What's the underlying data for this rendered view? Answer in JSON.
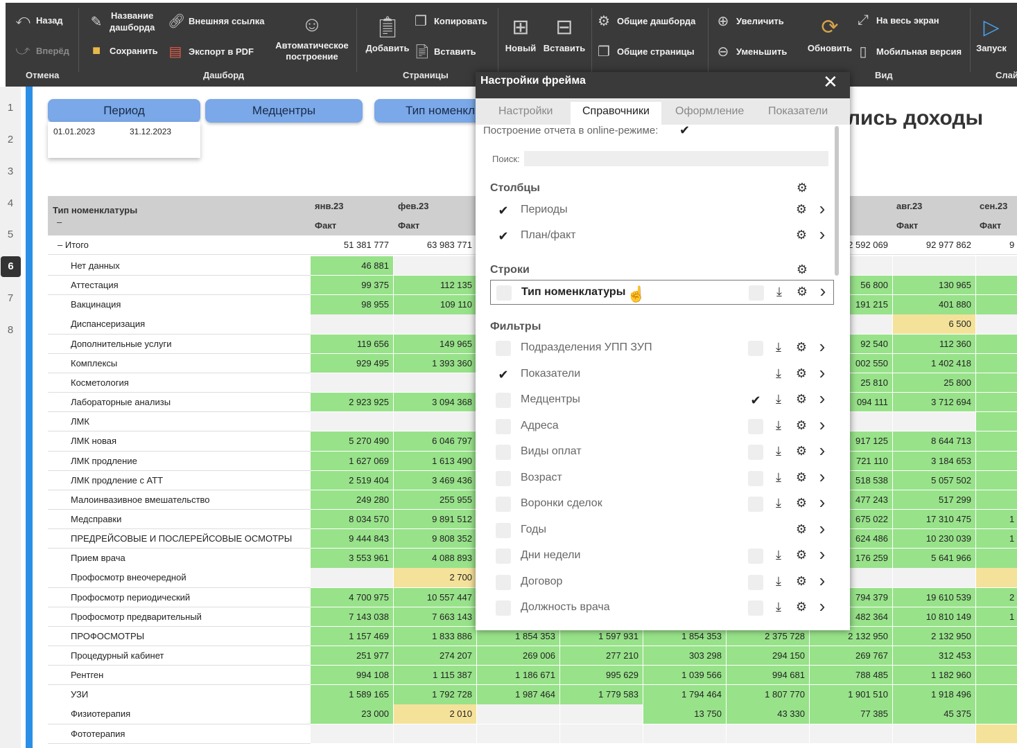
{
  "ribbon": {
    "back": "Назад",
    "forward": "Вперёд",
    "group_undo": "Отмена",
    "dash_name": "Название\nдашборда",
    "external_link": "Внешняя ссылка",
    "save": "Сохранить",
    "export_pdf": "Экспорт в PDF",
    "auto_build": "Автоматическое\nпостроение",
    "group_dashboard": "Дашборд",
    "add": "Добавить",
    "copy": "Копировать",
    "paste_page": "Вставить",
    "group_pages": "Страницы",
    "new": "Новый",
    "paste_widget": "Вставить",
    "shared_dash": "Общие дашборда",
    "shared_pages": "Общие страницы",
    "zoom_in": "Увеличить",
    "zoom_out": "Уменьшить",
    "refresh": "Обновить",
    "fullscreen": "На весь экран",
    "mobile": "Мобильная версия",
    "group_view": "Вид",
    "launch": "Запуск",
    "group_slide": "Слай"
  },
  "ruler": [
    "1",
    "2",
    "3",
    "4",
    "5",
    "6",
    "7",
    "8"
  ],
  "slicers": {
    "period": "Период",
    "centers": "Медцентры",
    "type": "Тип номенкл",
    "date_from": "01.01.2023",
    "date_to": "31.12.2023"
  },
  "report_title": "лись доходы",
  "table": {
    "col_header": "Тип номенклатуры",
    "col_sub": "–",
    "months": [
      "янв.23",
      "фев.23",
      "авг.23",
      "сен.23"
    ],
    "fact": "Факт",
    "rows": [
      {
        "label": "Итого",
        "total": true,
        "v": [
          "51 381 777",
          "63 983 771",
          "",
          "",
          "",
          "",
          "2 592 069",
          "92 977 862",
          "9"
        ],
        "c": [
          "w",
          "w",
          "w",
          "w",
          "w",
          "w",
          "w",
          "w",
          "w"
        ]
      },
      {
        "label": "Нет данных",
        "v": [
          "46 881",
          "",
          "",
          "",
          "",
          "",
          "",
          "",
          ""
        ],
        "c": [
          "g",
          "e",
          "e",
          "e",
          "e",
          "e",
          "e",
          "e",
          "e"
        ]
      },
      {
        "label": "Аттестация",
        "v": [
          "99 375",
          "112 135",
          "",
          "",
          "",
          "",
          "56 800",
          "130 965",
          ""
        ],
        "c": [
          "g",
          "g",
          "g",
          "g",
          "g",
          "g",
          "g",
          "g",
          "g"
        ]
      },
      {
        "label": "Вакцинация",
        "v": [
          "98 955",
          "109 110",
          "",
          "",
          "",
          "",
          "191 215",
          "401 880",
          ""
        ],
        "c": [
          "g",
          "g",
          "g",
          "g",
          "g",
          "g",
          "g",
          "g",
          "g"
        ]
      },
      {
        "label": "Диспансеризация",
        "v": [
          "",
          "",
          "",
          "",
          "",
          "",
          "",
          "6 500",
          ""
        ],
        "c": [
          "e",
          "e",
          "e",
          "e",
          "e",
          "e",
          "e",
          "y",
          "e"
        ]
      },
      {
        "label": "Дополнительные услуги",
        "v": [
          "119 656",
          "149 965",
          "",
          "",
          "",
          "",
          "92 540",
          "112 360",
          ""
        ],
        "c": [
          "g",
          "g",
          "g",
          "g",
          "g",
          "g",
          "g",
          "g",
          "g"
        ]
      },
      {
        "label": "Комплексы",
        "v": [
          "929 495",
          "1 393 360",
          "",
          "",
          "",
          "",
          "002 550",
          "1 402 418",
          ""
        ],
        "c": [
          "g",
          "g",
          "g",
          "g",
          "g",
          "g",
          "g",
          "g",
          "g"
        ]
      },
      {
        "label": "Косметология",
        "v": [
          "",
          "",
          "",
          "",
          "",
          "",
          "25 810",
          "25 800",
          ""
        ],
        "c": [
          "e",
          "e",
          "e",
          "e",
          "e",
          "e",
          "g",
          "g",
          "g"
        ]
      },
      {
        "label": "Лабораторные анализы",
        "v": [
          "2 923 925",
          "3 094 368",
          "",
          "",
          "",
          "",
          "094 111",
          "3 712 694",
          ""
        ],
        "c": [
          "g",
          "g",
          "g",
          "g",
          "g",
          "g",
          "g",
          "g",
          "g"
        ]
      },
      {
        "label": "ЛМК",
        "v": [
          "",
          "",
          "",
          "",
          "",
          "",
          "",
          "",
          ""
        ],
        "c": [
          "e",
          "e",
          "e",
          "e",
          "e",
          "e",
          "e",
          "e",
          "g"
        ]
      },
      {
        "label": "ЛМК новая",
        "v": [
          "5 270 490",
          "6 046 797",
          "",
          "",
          "",
          "",
          "917 125",
          "8 644 713",
          ""
        ],
        "c": [
          "g",
          "g",
          "g",
          "g",
          "g",
          "g",
          "g",
          "g",
          "g"
        ]
      },
      {
        "label": "ЛМК продление",
        "v": [
          "1 627 069",
          "1 613 490",
          "",
          "",
          "",
          "",
          "721 110",
          "3 184 653",
          ""
        ],
        "c": [
          "g",
          "g",
          "g",
          "g",
          "g",
          "g",
          "g",
          "g",
          "g"
        ]
      },
      {
        "label": "ЛМК продление с АТТ",
        "v": [
          "2 519 404",
          "3 469 436",
          "",
          "",
          "",
          "",
          "518 538",
          "5 057 502",
          ""
        ],
        "c": [
          "g",
          "g",
          "g",
          "g",
          "g",
          "g",
          "g",
          "g",
          "g"
        ]
      },
      {
        "label": "Малоинвазивное вмешательство",
        "v": [
          "249 280",
          "255 955",
          "",
          "",
          "",
          "",
          "477 243",
          "517 299",
          ""
        ],
        "c": [
          "g",
          "g",
          "g",
          "g",
          "g",
          "g",
          "g",
          "g",
          "g"
        ]
      },
      {
        "label": "Медсправки",
        "v": [
          "8 034 570",
          "9 891 512",
          "",
          "",
          "",
          "",
          "675 022",
          "17 310 475",
          "1"
        ],
        "c": [
          "g",
          "g",
          "g",
          "g",
          "g",
          "g",
          "g",
          "g",
          "g"
        ]
      },
      {
        "label": "ПРЕДРЕЙСОВЫЕ И ПОСЛЕРЕЙСОВЫЕ ОСМОТРЫ",
        "v": [
          "9 444 843",
          "9 808 352",
          "",
          "",
          "",
          "",
          "624 486",
          "10 230 039",
          "1"
        ],
        "c": [
          "g",
          "g",
          "g",
          "g",
          "g",
          "g",
          "g",
          "g",
          "g"
        ]
      },
      {
        "label": "Прием врача",
        "v": [
          "3 553 961",
          "4 088 893",
          "",
          "",
          "",
          "",
          "176 259",
          "5 641 966",
          ""
        ],
        "c": [
          "g",
          "g",
          "g",
          "g",
          "g",
          "g",
          "g",
          "g",
          "g"
        ]
      },
      {
        "label": "Профосмотр внеочередной",
        "v": [
          "",
          "2 700",
          "",
          "",
          "",
          "",
          "",
          "",
          ""
        ],
        "c": [
          "e",
          "y",
          "e",
          "e",
          "e",
          "e",
          "e",
          "e",
          "y"
        ]
      },
      {
        "label": "Профосмотр периодический",
        "v": [
          "4 700 975",
          "10 557 447",
          "",
          "",
          "",
          "",
          "794 379",
          "19 610 539",
          "2"
        ],
        "c": [
          "g",
          "g",
          "g",
          "g",
          "g",
          "g",
          "g",
          "g",
          "g"
        ]
      },
      {
        "label": "Профосмотр предварительный",
        "v": [
          "7 143 038",
          "7 663 143",
          "",
          "",
          "",
          "",
          "482 364",
          "10 810 149",
          "1"
        ],
        "c": [
          "g",
          "g",
          "g",
          "g",
          "g",
          "g",
          "g",
          "g",
          "g"
        ]
      },
      {
        "label": "ПРОФОСМОТРЫ",
        "v": [
          "1 157 469",
          "1 833 886",
          "1 854 353",
          "1 597 931",
          "1 854 353",
          "2 375 728",
          "2 132 950",
          "2 132 950",
          ""
        ],
        "c": [
          "g",
          "g",
          "g",
          "g",
          "g",
          "g",
          "g",
          "g",
          "g"
        ]
      },
      {
        "label": "Процедурный кабинет",
        "v": [
          "251 977",
          "274 207",
          "269 006",
          "277 210",
          "303 298",
          "294 150",
          "269 767",
          "312 453",
          ""
        ],
        "c": [
          "g",
          "g",
          "g",
          "g",
          "g",
          "g",
          "g",
          "g",
          "g"
        ]
      },
      {
        "label": "Рентген",
        "v": [
          "994 108",
          "1 115 387",
          "1 186 671",
          "995 629",
          "1 039 566",
          "994 681",
          "788 485",
          "1 182 960",
          ""
        ],
        "c": [
          "g",
          "g",
          "g",
          "g",
          "g",
          "g",
          "g",
          "g",
          "g"
        ]
      },
      {
        "label": "УЗИ",
        "v": [
          "1 589 165",
          "1 792 728",
          "1 987 464",
          "1 779 583",
          "1 794 464",
          "1 807 770",
          "1 901 510",
          "1 918 496",
          ""
        ],
        "c": [
          "g",
          "g",
          "g",
          "g",
          "g",
          "g",
          "g",
          "g",
          "g"
        ]
      },
      {
        "label": "Физиотерапия",
        "v": [
          "23 000",
          "2 010",
          "",
          "",
          "13 750",
          "43 330",
          "77 385",
          "45 375",
          ""
        ],
        "c": [
          "g",
          "y",
          "e",
          "e",
          "g",
          "g",
          "g",
          "g",
          "g"
        ]
      },
      {
        "label": "Фототерапия",
        "v": [
          "",
          "",
          "",
          "",
          "",
          "",
          "",
          "",
          ""
        ],
        "c": [
          "e",
          "e",
          "e",
          "e",
          "e",
          "e",
          "e",
          "e",
          "y"
        ]
      }
    ]
  },
  "dialog": {
    "title": "Настройки фрейма",
    "close": "✕",
    "tabs": [
      "Настройки",
      "Справочники",
      "Оформление",
      "Показатели"
    ],
    "online_label": "Построение отчета в online-режиме:",
    "search_label": "Поиск:",
    "search_placeholder": "",
    "sec_columns": "Столбцы",
    "sec_rows": "Строки",
    "sec_filters": "Фильтры",
    "columns": [
      {
        "label": "Периоды",
        "checked": true
      },
      {
        "label": "План/факт",
        "checked": true
      }
    ],
    "rows": [
      {
        "label": "Тип номенклатуры",
        "checked": false
      }
    ],
    "filters": [
      {
        "label": "Подразделения УПП ЗУП",
        "checked": false,
        "multi": false,
        "dl": true
      },
      {
        "label": "Показатели",
        "checked": true,
        "multi": null,
        "dl": true
      },
      {
        "label": "Медцентры",
        "checked": false,
        "multi": true,
        "dl": true
      },
      {
        "label": "Адреса",
        "checked": false,
        "multi": false,
        "dl": true
      },
      {
        "label": "Виды оплат",
        "checked": false,
        "multi": false,
        "dl": true
      },
      {
        "label": "Возраст",
        "checked": false,
        "multi": false,
        "dl": true
      },
      {
        "label": "Воронки сделок",
        "checked": false,
        "multi": false,
        "dl": true
      },
      {
        "label": "Годы",
        "checked": false,
        "multi": null,
        "dl": false
      },
      {
        "label": "Дни недели",
        "checked": false,
        "multi": false,
        "dl": true
      },
      {
        "label": "Договор",
        "checked": false,
        "multi": false,
        "dl": true
      },
      {
        "label": "Должность врача",
        "checked": false,
        "multi": false,
        "dl": true
      }
    ]
  }
}
